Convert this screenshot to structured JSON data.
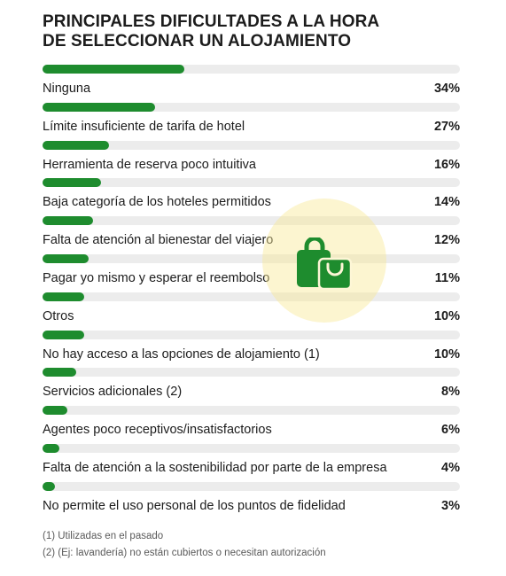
{
  "chart_data": {
    "type": "bar",
    "orientation": "horizontal",
    "title_lines": [
      "PRINCIPALES DIFICULTADES A LA HORA",
      "DE SELECCIONAR UN ALOJAMIENTO"
    ],
    "categories": [
      "Ninguna",
      "Límite insuficiente de tarifa de hotel",
      "Herramienta de reserva poco intuitiva",
      "Baja categoría de los hoteles permitidos",
      "Falta de atención al bienestar del viajero",
      "Pagar yo mismo y esperar el reembolso",
      "Otros",
      "No hay acceso a las opciones de alojamiento (1)",
      "Servicios adicionales (2)",
      "Agentes poco receptivos/insatisfactorios",
      "Falta de atención a la sostenibilidad por parte de la empresa",
      "No permite el uso personal de los puntos de fidelidad"
    ],
    "values": [
      34,
      27,
      16,
      14,
      12,
      11,
      10,
      10,
      8,
      6,
      4,
      3
    ],
    "value_labels": [
      "34%",
      "27%",
      "16%",
      "14%",
      "12%",
      "11%",
      "10%",
      "10%",
      "8%",
      "6%",
      "4%",
      "3%"
    ],
    "xlim": [
      0,
      100
    ],
    "unit": "%",
    "grid": false,
    "legend": "none",
    "colors": {
      "bar": "#1e8c2e",
      "track": "#ececec",
      "watermark_icon": "#1e8c2e",
      "watermark_circle": "#f8e896"
    }
  },
  "notes": [
    "(1) Utilizadas en el pasado",
    "(2) (Ej: lavandería) no están cubiertos o necesitan autorización"
  ],
  "watermark": {
    "icon": "shopping-bag-icon"
  }
}
